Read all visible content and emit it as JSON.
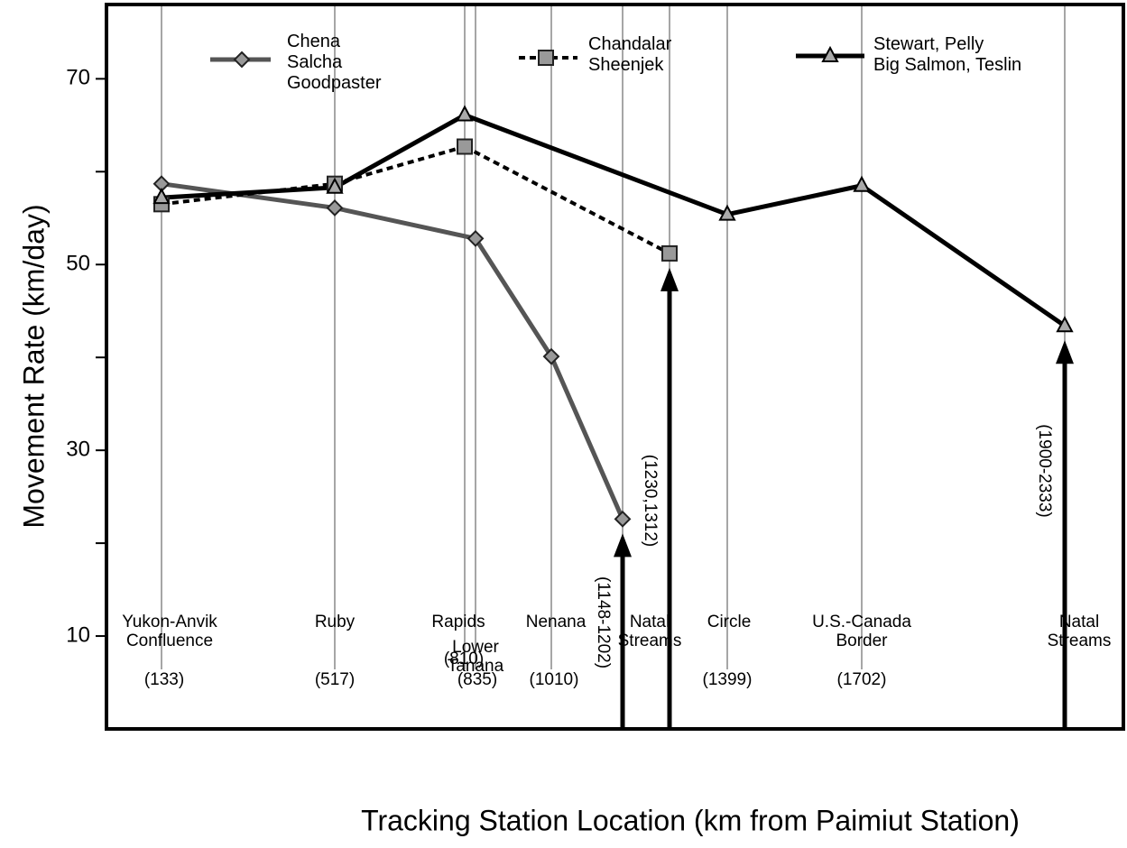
{
  "chart_data": {
    "type": "line",
    "y_label": "Movement Rate (km/day)",
    "x_label": "Tracking Station Location (km from Paimiut Station)",
    "categories": [
      "Yukon-Anvik\nConfluence",
      "Ruby",
      "Rapids",
      "Lower\nTanana",
      "Nenana",
      "Natal\nStreams",
      null,
      "Circle",
      "U.S.-Canada\nBorder",
      "Natal\nStreams"
    ],
    "km_labels": [
      "(133)",
      "(517)",
      "(810)",
      "(835)",
      "(1010)",
      "(1148-1202)",
      "(1230,1312)",
      "(1399)",
      "(1702)",
      "(1900-2333)"
    ],
    "ylim": [
      0,
      78
    ],
    "yticks": [
      10,
      30,
      50,
      70
    ],
    "yminor": [
      20,
      40,
      60
    ],
    "series": [
      {
        "name": "Chena\nSalcha\nGoodpaster",
        "color": "#555555",
        "marker": "diamond",
        "values": [
          58.7,
          56.1,
          null,
          52.8,
          40.1,
          22.6,
          null,
          null,
          null,
          null
        ]
      },
      {
        "name": "Chandalar\nSheenjek",
        "color": "#000000",
        "marker": "square",
        "dashed": true,
        "values": [
          56.5,
          58.7,
          62.7,
          null,
          null,
          null,
          51.2,
          null,
          null,
          null
        ]
      },
      {
        "name": "Stewart, Pelly\nBig Salmon, Teslin",
        "color": "#000000",
        "marker": "triangle",
        "values": [
          57.2,
          58.3,
          66.1,
          null,
          null,
          null,
          null,
          55.4,
          58.5,
          43.4
        ]
      }
    ]
  }
}
